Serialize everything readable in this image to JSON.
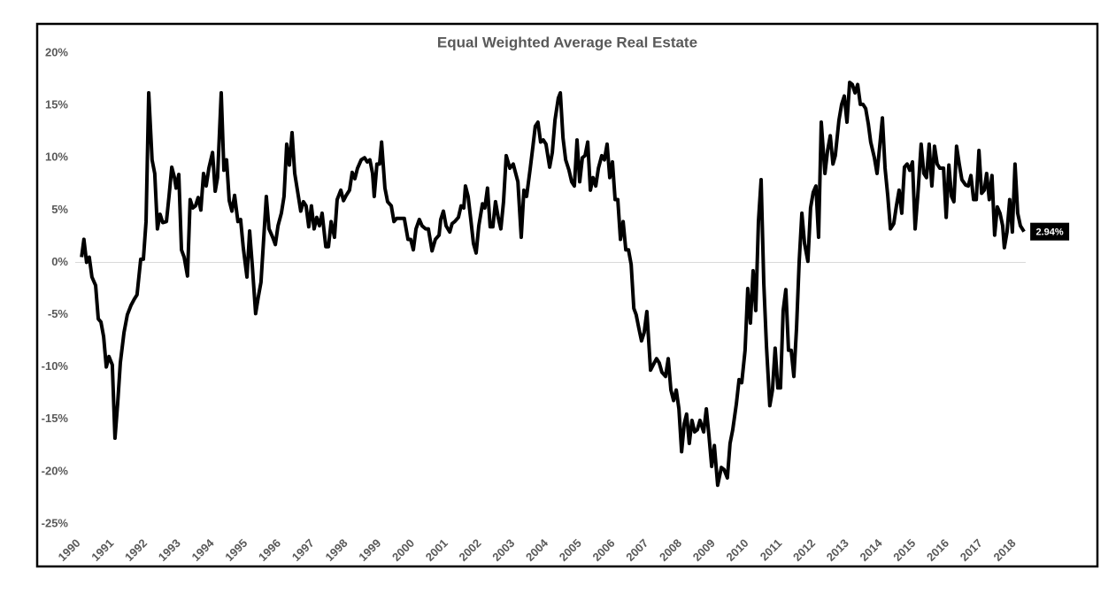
{
  "chart_data": {
    "type": "line",
    "title": "Equal Weighted Average Real Estate",
    "color": "#000000",
    "xlim": [
      1990,
      2018.45
    ],
    "xticks": [
      1990,
      1991,
      1992,
      1993,
      1994,
      1995,
      1996,
      1997,
      1998,
      1999,
      2000,
      2001,
      2002,
      2003,
      2004,
      2005,
      2006,
      2007,
      2008,
      2009,
      2010,
      2011,
      2012,
      2013,
      2014,
      2015,
      2016,
      2017,
      2018
    ],
    "ylim": [
      -25,
      20
    ],
    "yticks": [
      {
        "value": -25,
        "label": "-25%"
      },
      {
        "value": -20,
        "label": "-20%"
      },
      {
        "value": -15,
        "label": "-15%"
      },
      {
        "value": -10,
        "label": "-10%"
      },
      {
        "value": -5,
        "label": "-5%"
      },
      {
        "value": 0,
        "label": "0%"
      },
      {
        "value": 5,
        "label": "5%"
      },
      {
        "value": 10,
        "label": "10%"
      },
      {
        "value": 15,
        "label": "15%"
      },
      {
        "value": 20,
        "label": "20%"
      }
    ],
    "x": [
      1990.19,
      1990.26,
      1990.34,
      1990.42,
      1990.5,
      1990.61,
      1990.69,
      1990.77,
      1990.85,
      1990.93,
      1991.01,
      1991.11,
      1991.19,
      1991.27,
      1991.35,
      1991.46,
      1991.56,
      1991.67,
      1991.77,
      1991.85,
      1991.96,
      1992.04,
      1992.12,
      1992.2,
      1992.3,
      1992.38,
      1992.46,
      1992.54,
      1992.62,
      1992.73,
      1992.81,
      1992.89,
      1992.97,
      1993.02,
      1993.1,
      1993.18,
      1993.26,
      1993.36,
      1993.44,
      1993.52,
      1993.6,
      1993.68,
      1993.76,
      1993.84,
      1993.92,
      1994.0,
      1994.11,
      1994.19,
      1994.26,
      1994.37,
      1994.45,
      1994.53,
      1994.61,
      1994.69,
      1994.77,
      1994.87,
      1994.95,
      1995.03,
      1995.14,
      1995.22,
      1995.3,
      1995.4,
      1995.48,
      1995.56,
      1995.64,
      1995.72,
      1995.8,
      1995.91,
      1995.99,
      1996.07,
      1996.17,
      1996.25,
      1996.33,
      1996.41,
      1996.49,
      1996.57,
      1996.68,
      1996.75,
      1996.83,
      1996.91,
      1996.99,
      1997.07,
      1997.15,
      1997.23,
      1997.31,
      1997.39,
      1997.5,
      1997.58,
      1997.66,
      1997.76,
      1997.84,
      1997.95,
      1998.03,
      1998.11,
      1998.21,
      1998.29,
      1998.37,
      1998.45,
      1998.56,
      1998.66,
      1998.74,
      1998.82,
      1998.9,
      1998.95,
      1999.03,
      1999.11,
      1999.17,
      1999.27,
      1999.35,
      1999.46,
      1999.54,
      1999.62,
      1999.7,
      1999.77,
      1999.85,
      1999.96,
      2000.04,
      2000.12,
      2000.2,
      2000.3,
      2000.38,
      2000.49,
      2000.57,
      2000.68,
      2000.78,
      2000.89,
      2000.94,
      2001.02,
      2001.1,
      2001.21,
      2001.28,
      2001.36,
      2001.47,
      2001.55,
      2001.63,
      2001.68,
      2001.76,
      2001.84,
      2001.92,
      2002.0,
      2002.08,
      2002.19,
      2002.26,
      2002.34,
      2002.42,
      2002.5,
      2002.58,
      2002.66,
      2002.74,
      2002.82,
      2002.9,
      2003.01,
      2003.11,
      2003.25,
      2003.35,
      2003.43,
      2003.51,
      2003.62,
      2003.7,
      2003.77,
      2003.85,
      2003.93,
      2004.01,
      2004.09,
      2004.2,
      2004.28,
      2004.36,
      2004.46,
      2004.52,
      2004.6,
      2004.68,
      2004.78,
      2004.86,
      2004.94,
      2005.02,
      2005.1,
      2005.18,
      2005.26,
      2005.34,
      2005.42,
      2005.5,
      2005.58,
      2005.66,
      2005.76,
      2005.84,
      2005.92,
      2006.0,
      2006.08,
      2006.16,
      2006.24,
      2006.32,
      2006.4,
      2006.48,
      2006.56,
      2006.64,
      2006.72,
      2006.79,
      2006.87,
      2006.95,
      2007.03,
      2007.11,
      2007.22,
      2007.3,
      2007.4,
      2007.48,
      2007.56,
      2007.67,
      2007.75,
      2007.83,
      2007.91,
      2007.99,
      2008.07,
      2008.15,
      2008.23,
      2008.3,
      2008.38,
      2008.46,
      2008.54,
      2008.62,
      2008.7,
      2008.81,
      2008.89,
      2008.97,
      2009.05,
      2009.13,
      2009.23,
      2009.34,
      2009.42,
      2009.52,
      2009.6,
      2009.68,
      2009.79,
      2009.87,
      2009.95,
      2010.05,
      2010.13,
      2010.21,
      2010.29,
      2010.37,
      2010.45,
      2010.53,
      2010.61,
      2010.69,
      2010.79,
      2010.87,
      2010.95,
      2011.03,
      2011.11,
      2011.19,
      2011.27,
      2011.35,
      2011.43,
      2011.51,
      2011.59,
      2011.67,
      2011.75,
      2011.83,
      2011.93,
      2012.01,
      2012.09,
      2012.17,
      2012.25,
      2012.33,
      2012.44,
      2012.52,
      2012.6,
      2012.68,
      2012.75,
      2012.86,
      2012.94,
      2013.02,
      2013.1,
      2013.18,
      2013.26,
      2013.34,
      2013.42,
      2013.5,
      2013.58,
      2013.66,
      2013.74,
      2013.81,
      2013.92,
      2014.0,
      2014.08,
      2014.16,
      2014.24,
      2014.32,
      2014.4,
      2014.5,
      2014.58,
      2014.66,
      2014.74,
      2014.82,
      2014.9,
      2014.98,
      2015.06,
      2015.14,
      2015.22,
      2015.32,
      2015.4,
      2015.48,
      2015.56,
      2015.64,
      2015.72,
      2015.8,
      2015.88,
      2015.99,
      2016.07,
      2016.15,
      2016.23,
      2016.3,
      2016.38,
      2016.46,
      2016.54,
      2016.65,
      2016.73,
      2016.81,
      2016.89,
      2016.97,
      2017.05,
      2017.13,
      2017.21,
      2017.28,
      2017.36,
      2017.44,
      2017.52,
      2017.6,
      2017.68,
      2017.76,
      2017.81,
      2017.89,
      2017.97,
      2018.05,
      2018.13,
      2018.21,
      2018.29,
      2018.4
    ],
    "values": [
      0.5,
      2.2,
      0,
      0.5,
      -1.4,
      -2.2,
      -5.4,
      -5.7,
      -7.1,
      -10,
      -9,
      -9.8,
      -16.8,
      -13.5,
      -9.6,
      -6.7,
      -5,
      -4.1,
      -3.5,
      -3.1,
      0.3,
      0.3,
      3.9,
      16.2,
      9.8,
      8.5,
      3.2,
      4.6,
      3.8,
      3.9,
      6.4,
      9.1,
      8.1,
      7.1,
      8.4,
      1.2,
      0.5,
      -1.3,
      6,
      5.2,
      5.4,
      6.2,
      5,
      8.5,
      7.3,
      9,
      10.5,
      6.8,
      8.1,
      16.2,
      8.8,
      9.8,
      5.9,
      4.9,
      6.4,
      3.9,
      4.1,
      1.4,
      -1.4,
      3,
      -0.3,
      -4.9,
      -3.3,
      -1.9,
      2.2,
      6.3,
      3.2,
      2.4,
      1.7,
      3.5,
      4.7,
      6.3,
      11.3,
      9.3,
      12.4,
      8.5,
      6.3,
      4.9,
      5.8,
      5.4,
      3.4,
      5.4,
      3.2,
      4.3,
      3.5,
      4.7,
      1.5,
      1.5,
      3.9,
      2.4,
      6,
      6.9,
      5.9,
      6.4,
      6.9,
      8.6,
      8,
      9,
      9.8,
      10,
      9.6,
      9.8,
      8.5,
      6.3,
      9.4,
      9.4,
      11.5,
      7.1,
      5.8,
      5.4,
      3.9,
      4.2,
      4.2,
      4.2,
      4.2,
      2.2,
      2.2,
      1.2,
      3.2,
      4.1,
      3.5,
      3.2,
      3.2,
      1.1,
      2.2,
      2.6,
      4.1,
      4.9,
      3.5,
      2.9,
      3.7,
      3.9,
      4.3,
      5.4,
      5.2,
      7.3,
      6.3,
      4.1,
      1.8,
      0.9,
      3.5,
      5.6,
      5.2,
      7.1,
      3.4,
      3.4,
      5.8,
      4.3,
      3.2,
      5.8,
      10.2,
      9,
      9.4,
      7.7,
      2.4,
      6.9,
      6.3,
      9,
      11.1,
      13,
      13.4,
      11.5,
      11.7,
      11.3,
      9.1,
      10.5,
      13.6,
      15.7,
      16.2,
      11.9,
      9.8,
      8.8,
      7.7,
      7.3,
      11.7,
      7.7,
      10,
      10.2,
      11.5,
      6.9,
      8.1,
      7.3,
      9,
      10.2,
      9.8,
      11.3,
      8.1,
      9.6,
      6,
      6,
      2.2,
      3.9,
      1.2,
      1.2,
      -0.2,
      -4.4,
      -5,
      -6.3,
      -7.5,
      -6.7,
      -4.7,
      -10.3,
      -9.8,
      -9.2,
      -9.6,
      -10.5,
      -10.9,
      -9.2,
      -12.2,
      -13.2,
      -12.2,
      -14,
      -18.1,
      -15.4,
      -14.5,
      -17.3,
      -15.1,
      -16.2,
      -16,
      -15.1,
      -16.2,
      -14,
      -16.6,
      -19.5,
      -17.5,
      -21.3,
      -19.6,
      -19.8,
      -20.6,
      -17.3,
      -16,
      -13.5,
      -11.2,
      -11.5,
      -8.4,
      -2.5,
      -5.8,
      -0.8,
      -4.6,
      3.9,
      7.9,
      -2,
      -8,
      -13.7,
      -12.2,
      -8.2,
      -12,
      -12,
      -4.6,
      -2.6,
      -8.4,
      -8.4,
      -10.9,
      -6.3,
      0.1,
      4.7,
      1.8,
      0.1,
      5.2,
      6.7,
      7.3,
      2.4,
      13.4,
      8.5,
      10.7,
      12.1,
      9.4,
      10.2,
      13.6,
      15.1,
      15.9,
      13.4,
      17.2,
      17,
      16.2,
      17,
      15.1,
      15.1,
      14.7,
      13.2,
      11.5,
      10,
      8.5,
      11.1,
      13.8,
      9,
      6.4,
      3.2,
      3.7,
      5.4,
      6.9,
      4.7,
      9.1,
      9.4,
      8.8,
      9.6,
      3.2,
      6.4,
      11.3,
      8.5,
      8.1,
      11.3,
      7.3,
      11.1,
      9.4,
      9,
      9,
      4.3,
      9.3,
      6.3,
      5.8,
      11.1,
      9.4,
      7.9,
      7.4,
      7.3,
      8.3,
      6,
      6,
      10.7,
      6.6,
      6.9,
      8.5,
      6,
      8.3,
      2.6,
      5.3,
      4.7,
      3.5,
      1.4,
      2.9,
      6,
      2.9,
      9.4,
      4.7,
      3.5,
      2.94
    ],
    "annotations": [
      {
        "x": 2018.4,
        "value": 2.94,
        "label": "2.94%"
      }
    ]
  }
}
